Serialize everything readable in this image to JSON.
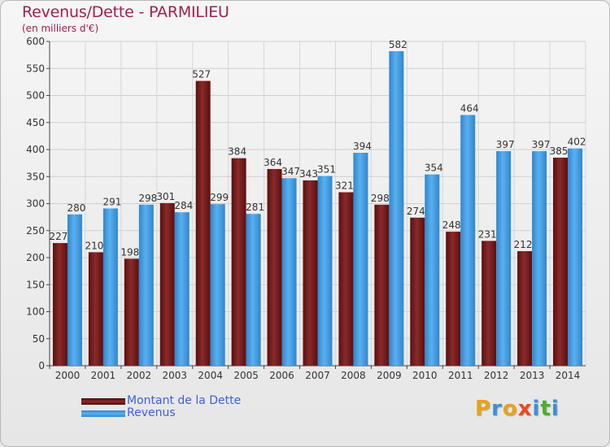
{
  "header": {
    "title": "Revenus/Dette - PARMILIEU",
    "subtitle": "(en milliers d'€)"
  },
  "legend": {
    "items": [
      {
        "label": "Montant de la Dette",
        "color": "#7a1a1a"
      },
      {
        "label": "Revenus",
        "color": "#4aa3e6"
      }
    ]
  },
  "logo": {
    "text": "Proxiti",
    "letters": [
      {
        "ch": "P",
        "color": "#e8a21a"
      },
      {
        "ch": "r",
        "color": "#3f8fd8"
      },
      {
        "ch": "o",
        "color": "#e8a21a"
      },
      {
        "ch": "x",
        "color": "#e84a1a"
      },
      {
        "ch": "i",
        "color": "#3f8fd8"
      },
      {
        "ch": "t",
        "color": "#4ab02a"
      },
      {
        "ch": "i",
        "color": "#3f8fd8"
      }
    ]
  },
  "chart_data": {
    "type": "bar",
    "title": "Revenus/Dette - PARMILIEU",
    "subtitle": "(en milliers d'€)",
    "categories": [
      "2000",
      "2001",
      "2002",
      "2003",
      "2004",
      "2005",
      "2006",
      "2007",
      "2008",
      "2009",
      "2010",
      "2011",
      "2012",
      "2013",
      "2014"
    ],
    "series": [
      {
        "name": "Montant de la Dette",
        "color": "#7a1a1a",
        "values": [
          227,
          210,
          198,
          301,
          527,
          384,
          364,
          343,
          321,
          298,
          274,
          248,
          231,
          212,
          385
        ]
      },
      {
        "name": "Revenus",
        "color": "#4aa3e6",
        "values": [
          280,
          291,
          298,
          284,
          299,
          281,
          347,
          351,
          394,
          582,
          354,
          464,
          397,
          397,
          402
        ]
      }
    ],
    "ylim": [
      0,
      600
    ],
    "yticks": [
      0,
      50,
      100,
      150,
      200,
      250,
      300,
      350,
      400,
      450,
      500,
      550,
      600
    ],
    "grid": true,
    "legend_position": "bottom-left"
  }
}
